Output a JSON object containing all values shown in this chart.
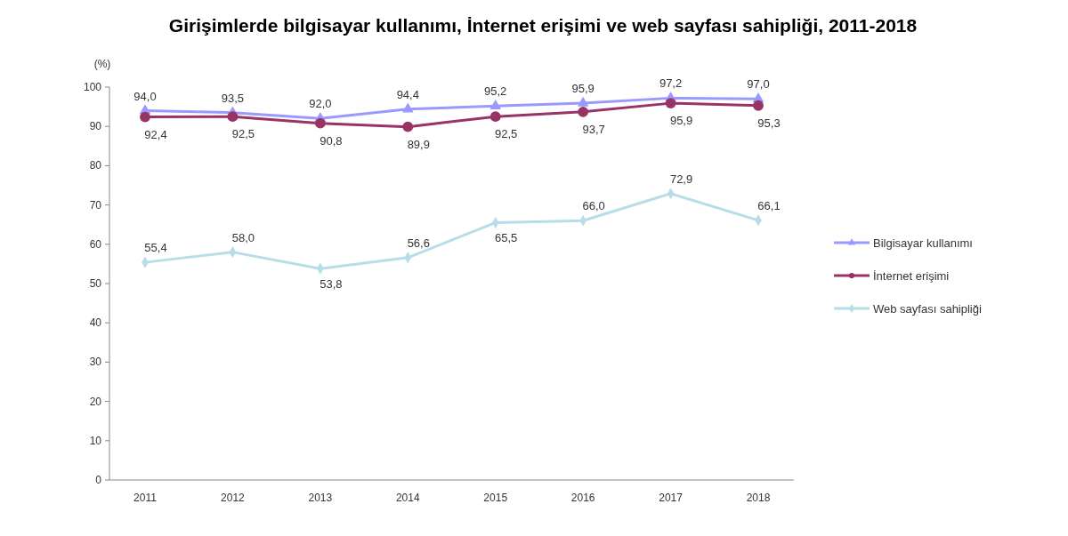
{
  "chart_data": {
    "type": "line",
    "title": "Girişimlerde bilgisayar kullanımı, İnternet erişimi ve web sayfası sahipliği, 2011-2018",
    "ylabel": "(%)",
    "categories": [
      "2011",
      "2012",
      "2013",
      "2014",
      "2015",
      "2016",
      "2017",
      "2018"
    ],
    "ylim": [
      0,
      100
    ],
    "yticks": [
      0,
      10,
      20,
      30,
      40,
      50,
      60,
      70,
      80,
      90,
      100
    ],
    "grid": false,
    "legend": "right",
    "series": [
      {
        "name": "Bilgisayar kullanımı",
        "color": "#9999ff",
        "marker": "triangle",
        "values": [
          94.0,
          93.5,
          92.0,
          94.4,
          95.2,
          95.9,
          97.2,
          97.0
        ],
        "value_labels": [
          "94,0",
          "93,5",
          "92,0",
          "94,4",
          "95,2",
          "95,9",
          "97,2",
          "97,0"
        ]
      },
      {
        "name": "İnternet erişimi",
        "color": "#993366",
        "marker": "circle",
        "values": [
          92.4,
          92.5,
          90.8,
          89.9,
          92.5,
          93.7,
          95.9,
          95.3
        ],
        "value_labels": [
          "92,4",
          "92,5",
          "90,8",
          "89,9",
          "92,5",
          "93,7",
          "95,9",
          "95,3"
        ]
      },
      {
        "name": "Web sayfası sahipliği",
        "color": "#b7dde8",
        "marker": "diamond",
        "values": [
          55.4,
          58.0,
          53.8,
          56.6,
          65.5,
          66.0,
          72.9,
          66.1
        ],
        "value_labels": [
          "55,4",
          "58,0",
          "53,8",
          "56,6",
          "65,5",
          "66,0",
          "72,9",
          "66,1"
        ]
      }
    ]
  }
}
